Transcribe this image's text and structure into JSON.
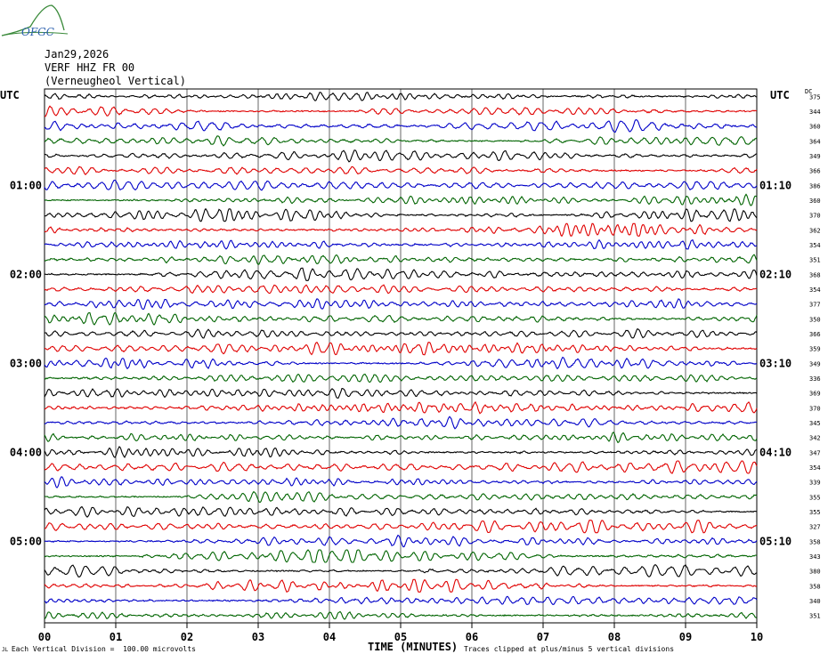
{
  "logo": {
    "text": "OFGC"
  },
  "header": {
    "date": "Jan29,2026",
    "station": "VERF HHZ FR 00",
    "location": "(Verneugheol Vertical)"
  },
  "chart_data": {
    "type": "line",
    "left_label": "UTC",
    "right_label": "UTC",
    "dc_label": "DC",
    "xlabel": "TIME (MINUTES)",
    "x_ticks": [
      "00",
      "01",
      "02",
      "03",
      "04",
      "05",
      "06",
      "07",
      "08",
      "09",
      "10"
    ],
    "xlim": [
      0,
      10
    ],
    "left_time_labels": [
      {
        "trace": 6,
        "text": "01:00"
      },
      {
        "trace": 12,
        "text": "02:00"
      },
      {
        "trace": 18,
        "text": "03:00"
      },
      {
        "trace": 24,
        "text": "04:00"
      },
      {
        "trace": 30,
        "text": "05:00"
      }
    ],
    "right_time_labels": [
      {
        "trace": 6,
        "text": "01:10"
      },
      {
        "trace": 12,
        "text": "02:10"
      },
      {
        "trace": 18,
        "text": "03:10"
      },
      {
        "trace": 24,
        "text": "04:10"
      },
      {
        "trace": 30,
        "text": "05:10"
      }
    ],
    "dc_offsets": [
      375,
      344,
      360,
      364,
      349,
      366,
      386,
      360,
      370,
      362,
      354,
      351,
      368,
      354,
      377,
      350,
      366,
      359,
      349,
      336,
      369,
      370,
      345,
      342,
      347,
      354,
      339,
      355,
      355,
      327,
      358,
      343,
      380,
      358,
      340,
      351
    ],
    "trace_colors": [
      "#000000",
      "#e00000",
      "#0000c8",
      "#006400"
    ],
    "footer_left": "Each Vertical Division =  100.00 microvolts",
    "footer_right": "Traces clipped at plus/minus 5 vertical divisions"
  }
}
